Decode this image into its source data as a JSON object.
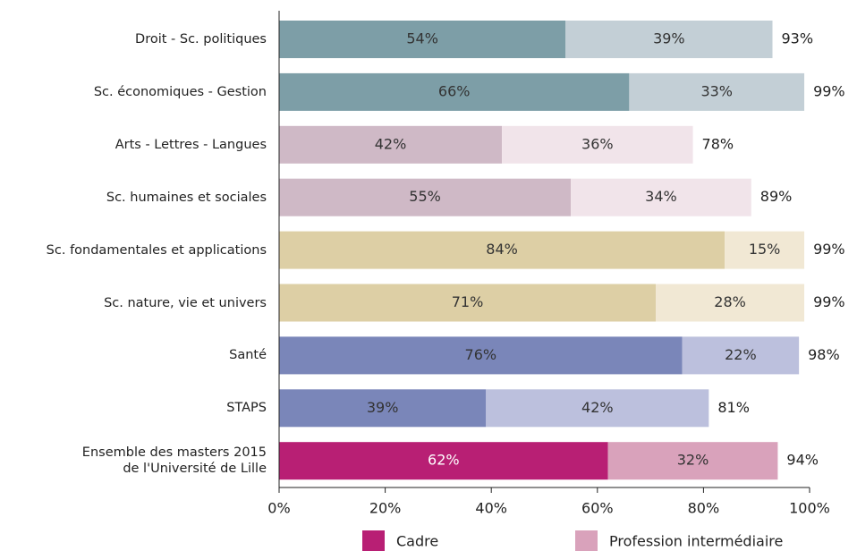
{
  "chart_data": {
    "type": "stacked_barh",
    "categories": [
      "Droit - Sc. politiques",
      "Sc. économiques - Gestion",
      "Arts - Lettres - Langues",
      "Sc. humaines et sociales",
      "Sc. fondamentales et applications",
      "Sc. nature, vie et univers",
      "Santé",
      "STAPS",
      "Ensemble des masters 2015\nde l'Université de Lille"
    ],
    "series": [
      {
        "name": "Cadre",
        "color": "#b81f74",
        "colors": [
          "#7d9ea7",
          "#7d9ea7",
          "#cfb9c6",
          "#cfb9c6",
          "#ddcfa5",
          "#ddcfa5",
          "#7a86b9",
          "#7a86b9",
          "#b81f74"
        ],
        "values": [
          54,
          66,
          42,
          55,
          84,
          71,
          76,
          39,
          62
        ],
        "value_labels": [
          "54%",
          "66%",
          "42%",
          "55%",
          "84%",
          "71%",
          "76%",
          "39%",
          "62%"
        ]
      },
      {
        "name": "Profession intermédiaire",
        "color": "#d9a2bb",
        "colors": [
          "#c3cfd6",
          "#c3cfd6",
          "#f1e4ea",
          "#f1e4ea",
          "#f1e8d4",
          "#f1e8d4",
          "#bcc0dd",
          "#bcc0dd",
          "#d9a2bb"
        ],
        "values": [
          39,
          33,
          36,
          34,
          15,
          28,
          22,
          42,
          32
        ],
        "value_labels": [
          "39%",
          "33%",
          "36%",
          "34%",
          "15%",
          "28%",
          "22%",
          "42%",
          "32%"
        ]
      }
    ],
    "totals": [
      93,
      99,
      78,
      89,
      99,
      99,
      98,
      81,
      94
    ],
    "total_labels": [
      "93%",
      "99%",
      "78%",
      "89%",
      "99%",
      "99%",
      "98%",
      "81%",
      "94%"
    ],
    "xlim": [
      0,
      100
    ],
    "xticks": [
      {
        "value": 0,
        "label": "0%"
      },
      {
        "value": 20,
        "label": "20%"
      },
      {
        "value": 40,
        "label": "40%"
      },
      {
        "value": 60,
        "label": "60%"
      },
      {
        "value": 80,
        "label": "80%"
      },
      {
        "value": 100,
        "label": "100%"
      }
    ],
    "legend": "bottom"
  }
}
